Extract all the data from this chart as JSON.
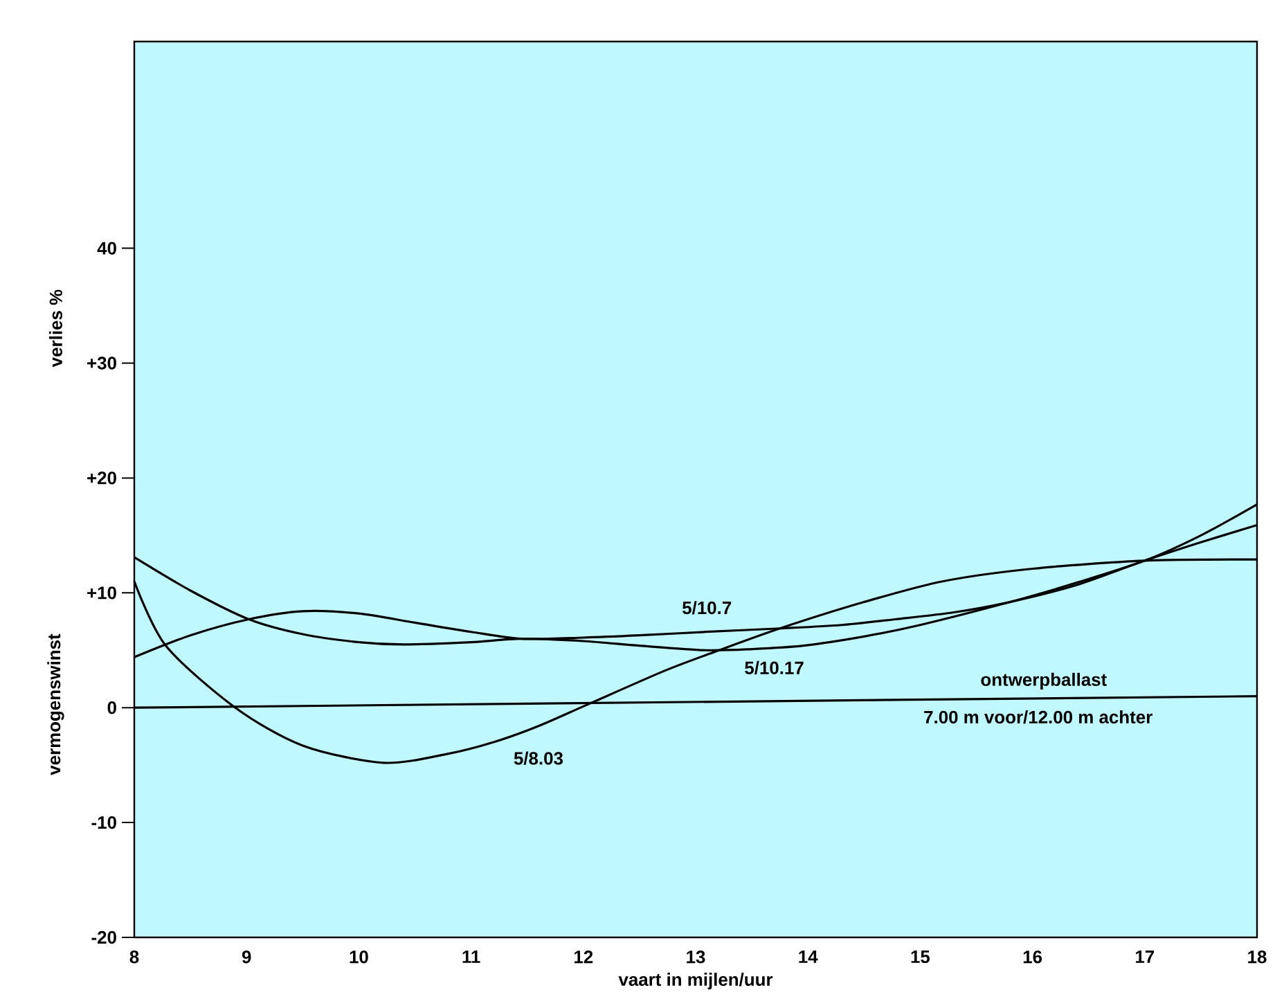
{
  "chart_data": {
    "type": "line",
    "xlabel": "vaart in mijlen/uur",
    "ylabel": "verlies %",
    "xlim": [
      8,
      18
    ],
    "ylim": [
      -20,
      58
    ],
    "xticks": [
      8,
      9,
      10,
      11,
      12,
      13,
      14,
      15,
      16,
      17,
      18
    ],
    "yticks": [
      -20,
      -10,
      0,
      {
        "value": 10,
        "label": "+10"
      },
      {
        "value": 20,
        "label": "+20"
      },
      {
        "value": 30,
        "label": "+30"
      },
      40
    ],
    "grid": false,
    "legend": false,
    "marker": "none",
    "line_style": "solid",
    "series": [
      {
        "name": "5/8.03",
        "color": "#000000",
        "x": [
          8,
          8.28,
          8.9,
          9.5,
          10.22,
          10.8,
          11.2,
          11.6,
          12.02,
          12.72,
          13.18,
          13.75,
          14.5,
          15.2,
          16,
          17,
          18
        ],
        "values": [
          11.0,
          5.4,
          0,
          -3.3,
          -4.8,
          -4.0,
          -3.0,
          -1.6,
          0.2,
          3.2,
          4.9,
          6.9,
          9.2,
          11.0,
          12.1,
          12.8,
          12.9
        ]
      },
      {
        "name": "5/10.7",
        "color": "#000000",
        "x": [
          8,
          8.5,
          9.02,
          9.5,
          10,
          10.5,
          11,
          11.45,
          12,
          12.5,
          13.09,
          13.75,
          14.3,
          14.78,
          15.3,
          15.8,
          16.4,
          17,
          17.5,
          18
        ],
        "values": [
          4.4,
          6.3,
          7.7,
          8.4,
          8.2,
          7.4,
          6.6,
          6.0,
          6.1,
          6.3,
          6.6,
          6.9,
          7.2,
          7.7,
          8.3,
          9.2,
          10.7,
          12.8,
          14.4,
          15.9
        ]
      },
      {
        "name": "5/10.17",
        "color": "#000000",
        "x": [
          8,
          8.5,
          9.02,
          9.5,
          10,
          10.4,
          11,
          11.45,
          12,
          12.5,
          13.09,
          13.5,
          13.96,
          14.5,
          15,
          15.8,
          16.4,
          17,
          17.5,
          18
        ],
        "values": [
          13.1,
          10.2,
          7.7,
          6.4,
          5.7,
          5.5,
          5.7,
          6.0,
          5.8,
          5.4,
          5.0,
          5.1,
          5.4,
          6.2,
          7.2,
          9.2,
          10.9,
          12.8,
          15.0,
          17.7
        ]
      },
      {
        "name": "ontwerpballast",
        "color": "#000000",
        "x": [
          8,
          18
        ],
        "values": [
          0,
          1.0
        ]
      }
    ],
    "annotations": [
      "7.00 m voor/12.00 m achter",
      "vermogenswinst"
    ]
  }
}
